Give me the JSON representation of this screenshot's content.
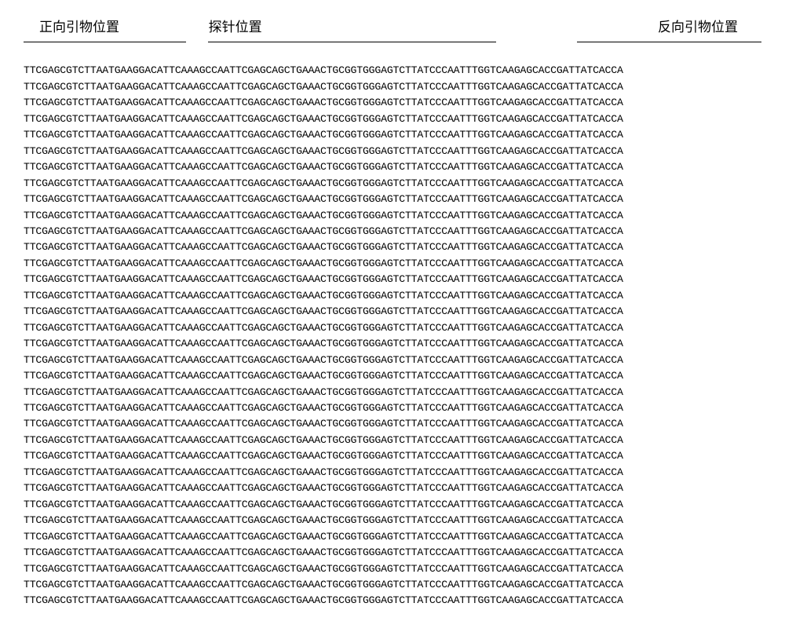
{
  "headers": {
    "forward": "正向引物位置",
    "probe": "探针位置",
    "reverse": "反向引物位置"
  },
  "sequence": "TTCGAGCGTCTTAATGAAGGACATTCAAAGCCAATTCGAGCAGCTGAAACTGCGGTGGGAGTCTTATCCCAATTTGGTCAAGAGCACCGATTATCACCA",
  "row_count": 34,
  "styling": {
    "background_color": "#ffffff",
    "text_color": "#000000",
    "header_fontsize": 17,
    "sequence_fontsize": 13.2,
    "sequence_font": "Courier New",
    "line_height": 1.55,
    "underline_color": "#000000"
  }
}
